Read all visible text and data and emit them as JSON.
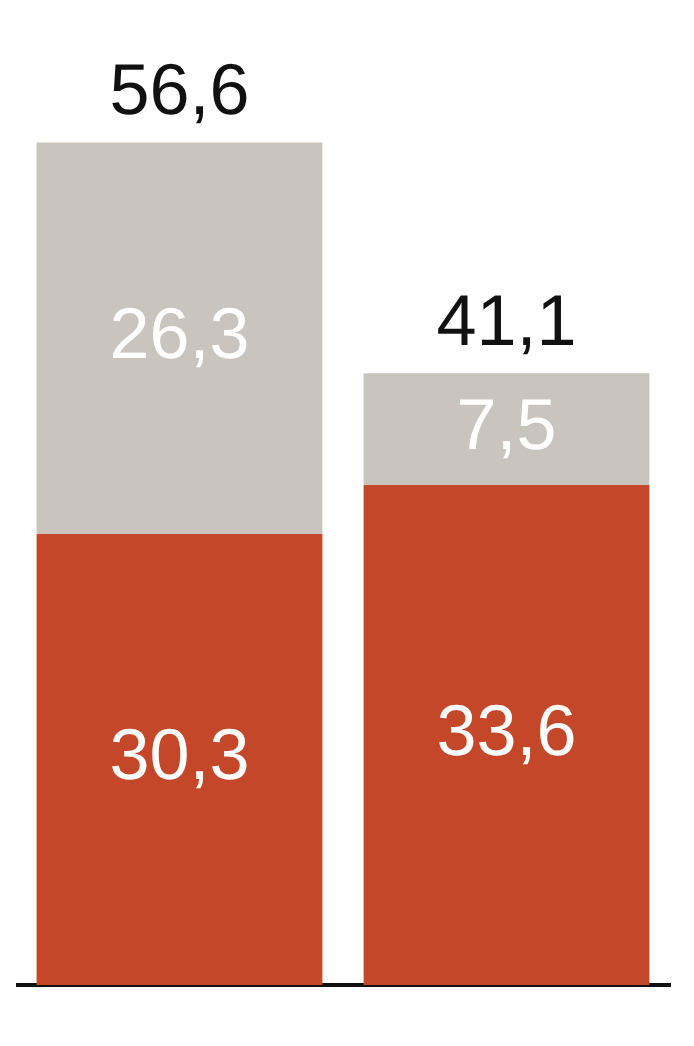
{
  "chart_data": {
    "type": "bar",
    "stacked": true,
    "categories": [
      null,
      null
    ],
    "series": [
      {
        "color": "#c4472a",
        "values": [
          30.3,
          33.6
        ],
        "value_labels": [
          "30,3",
          "33,6"
        ]
      },
      {
        "color": "#c9c4be",
        "values": [
          26.3,
          7.5
        ],
        "value_labels": [
          "26,3",
          "7,5"
        ]
      }
    ],
    "totals": [
      "56,6",
      "41,1"
    ],
    "grid": false,
    "legend": false
  }
}
